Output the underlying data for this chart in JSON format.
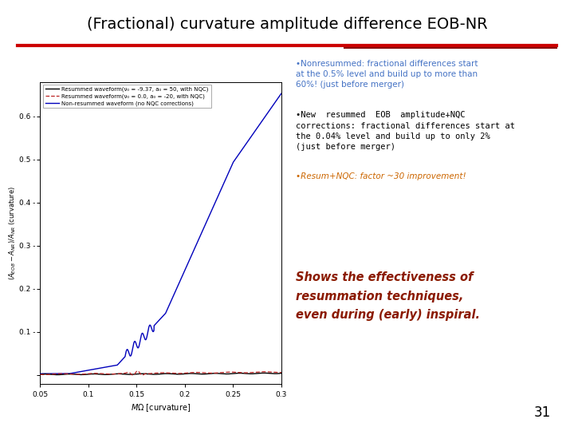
{
  "title": "(Fractional) curvature amplitude difference EOB-NR",
  "title_fontsize": 14,
  "title_fontweight": "normal",
  "bg_color": "#ffffff",
  "sep_color1": "#cc0000",
  "sep_color2": "#8b0000",
  "text_blue": "#4472c4",
  "text_black": "#000000",
  "text_orange": "#cc6600",
  "text_darkred": "#8b1a00",
  "legend_labels": [
    "Resummed waveform(ν₀ = -9.37, a₀ = 50, with NQC)",
    "Resummed waveform(ν₀ = 0.0, a₀ = -20, with NQC)",
    "Non-resummed waveform (no NQC corrections)"
  ],
  "italic_text": "Shows the effectiveness of\nresummation techniques,\neven during (early) inspiral.",
  "page_number": "31",
  "xlim": [
    0.05,
    0.3
  ],
  "ylim": [
    -0.02,
    0.68
  ],
  "xticks": [
    0.05,
    0.1,
    0.15,
    0.2,
    0.25,
    0.3
  ],
  "yticks": [
    0.0,
    0.1,
    0.2,
    0.3,
    0.4,
    0.5,
    0.6
  ]
}
